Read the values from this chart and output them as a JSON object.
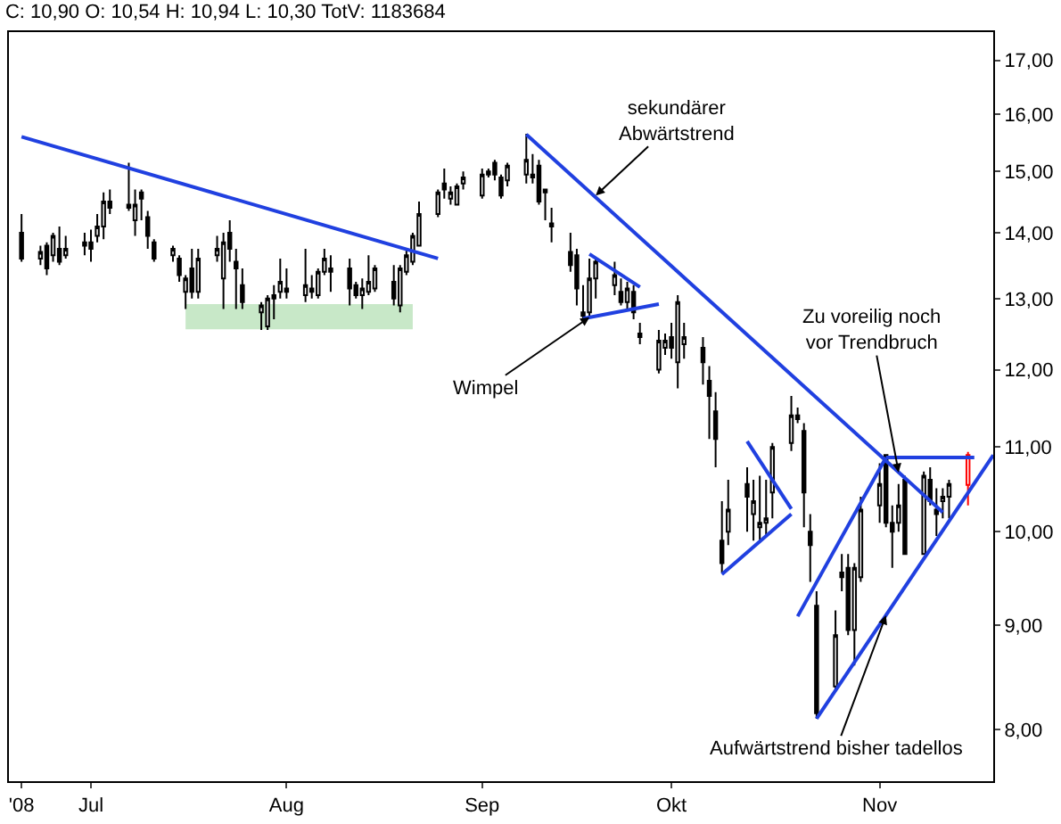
{
  "chart_data": {
    "type": "candlestick",
    "title": "C: 10,90 O: 10,54 H: 10,94 L: 10,30 TotV: 1183684",
    "log": "y",
    "legend": false,
    "xlim": [
      "2008-06-18",
      "2008-11-21"
    ],
    "xticks": [
      {
        "value": "2008-06-20",
        "label": "'08"
      },
      {
        "value": "2008-07-01",
        "label": "Jul"
      },
      {
        "value": "2008-08-01",
        "label": "Aug"
      },
      {
        "value": "2008-09-01",
        "label": "Sep"
      },
      {
        "value": "2008-10-01",
        "label": "Okt"
      },
      {
        "value": "2008-11-03",
        "label": "Nov"
      }
    ],
    "ylim": [
      7.55,
      17.55
    ],
    "yticks": [
      {
        "value": 8,
        "label": "8,00"
      },
      {
        "value": 9,
        "label": "9,00"
      },
      {
        "value": 10,
        "label": "10,00"
      },
      {
        "value": 11,
        "label": "11,00"
      },
      {
        "value": 12,
        "label": "12,00"
      },
      {
        "value": 13,
        "label": "13,00"
      },
      {
        "value": 14,
        "label": "14,00"
      },
      {
        "value": 15,
        "label": "15,00"
      },
      {
        "value": 16,
        "label": "16,00"
      },
      {
        "value": 17,
        "label": "17,00"
      }
    ],
    "annotations": [
      {
        "text": "sekundärer\nAbwärtstrend",
        "x": "2008-09-19",
        "y": 14.6
      },
      {
        "text": "Wimpel",
        "x": "2008-09-18",
        "y": 12.73
      },
      {
        "text": "Zu voreilig noch\nvor Trendbruch",
        "x": "2008-11-06",
        "y": 10.69
      },
      {
        "text": "Aufwärtstrend bisher tadellos",
        "x": "2008-11-04",
        "y": 9.1
      }
    ],
    "series": [
      {
        "type": "bar",
        "color": "#c8e8c8",
        "x": [
          "2008-08-03"
        ],
        "base": [
          12.56
        ],
        "values": [
          0.36
        ]
      },
      {
        "color": "#000000",
        "x": [
          "2008-06-20",
          "2008-06-23",
          "2008-06-24",
          "2008-06-25",
          "2008-06-26",
          "2008-06-27",
          "2008-06-30",
          "2008-07-01",
          "2008-07-02",
          "2008-07-03",
          "2008-07-04",
          "2008-07-07",
          "2008-07-08",
          "2008-07-09",
          "2008-07-10",
          "2008-07-11",
          "2008-07-14",
          "2008-07-15",
          "2008-07-16",
          "2008-07-17",
          "2008-07-18",
          "2008-07-21",
          "2008-07-22",
          "2008-07-23",
          "2008-07-24",
          "2008-07-25",
          "2008-07-28",
          "2008-07-29",
          "2008-07-30",
          "2008-07-31",
          "2008-08-01",
          "2008-08-04",
          "2008-08-05",
          "2008-08-06",
          "2008-08-07",
          "2008-08-08",
          "2008-08-11",
          "2008-08-12",
          "2008-08-13",
          "2008-08-14",
          "2008-08-15",
          "2008-08-18",
          "2008-08-19",
          "2008-08-20",
          "2008-08-21",
          "2008-08-22",
          "2008-08-25",
          "2008-08-26",
          "2008-08-27",
          "2008-08-28",
          "2008-08-29",
          "2008-09-01",
          "2008-09-02",
          "2008-09-03",
          "2008-09-04",
          "2008-09-05",
          "2008-09-08",
          "2008-09-09",
          "2008-09-10",
          "2008-09-11",
          "2008-09-12",
          "2008-09-15",
          "2008-09-16",
          "2008-09-17",
          "2008-09-18",
          "2008-09-19",
          "2008-09-22",
          "2008-09-23",
          "2008-09-24",
          "2008-09-25",
          "2008-09-26",
          "2008-09-29",
          "2008-09-30",
          "2008-10-01",
          "2008-10-02",
          "2008-10-03",
          "2008-10-06",
          "2008-10-07",
          "2008-10-08",
          "2008-10-09",
          "2008-10-10",
          "2008-10-13",
          "2008-10-14",
          "2008-10-15",
          "2008-10-16",
          "2008-10-17",
          "2008-10-20",
          "2008-10-21",
          "2008-10-22",
          "2008-10-23",
          "2008-10-24",
          "2008-10-27",
          "2008-10-28",
          "2008-10-29",
          "2008-10-30",
          "2008-10-31",
          "2008-11-03",
          "2008-11-04",
          "2008-11-05",
          "2008-11-06",
          "2008-11-07",
          "2008-11-10",
          "2008-11-11",
          "2008-11-12",
          "2008-11-13",
          "2008-11-14"
        ],
        "ohlc": [
          [
            14.0,
            14.3,
            13.55,
            13.6
          ],
          [
            13.6,
            13.8,
            13.5,
            13.7
          ],
          [
            13.8,
            13.85,
            13.35,
            13.45
          ],
          [
            13.65,
            14.0,
            13.55,
            13.95
          ],
          [
            13.75,
            14.1,
            13.5,
            13.55
          ],
          [
            13.65,
            13.95,
            13.6,
            13.75
          ],
          [
            13.8,
            14.0,
            13.65,
            13.85
          ],
          [
            13.85,
            14.05,
            13.55,
            13.75
          ],
          [
            13.95,
            14.3,
            13.85,
            14.1
          ],
          [
            14.1,
            14.65,
            13.9,
            14.5
          ],
          [
            14.5,
            14.7,
            14.3,
            14.4
          ],
          [
            14.45,
            15.15,
            14.35,
            14.4
          ],
          [
            14.2,
            14.7,
            13.95,
            14.45
          ],
          [
            14.65,
            14.7,
            14.2,
            14.55
          ],
          [
            14.25,
            14.35,
            13.75,
            13.95
          ],
          [
            13.85,
            13.9,
            13.55,
            13.6
          ],
          [
            13.65,
            13.8,
            13.55,
            13.75
          ],
          [
            13.6,
            13.65,
            13.25,
            13.35
          ],
          [
            13.1,
            13.35,
            12.85,
            13.3
          ],
          [
            13.45,
            13.75,
            13.0,
            13.1
          ],
          [
            13.1,
            13.75,
            13.0,
            13.6
          ],
          [
            13.65,
            13.95,
            13.55,
            13.75
          ],
          [
            13.3,
            14.0,
            12.85,
            13.85
          ],
          [
            14.0,
            14.2,
            13.55,
            13.75
          ],
          [
            13.55,
            13.75,
            12.85,
            13.45
          ],
          [
            13.2,
            13.45,
            12.85,
            12.95
          ],
          [
            12.8,
            12.95,
            12.55,
            12.9
          ],
          [
            12.6,
            13.05,
            12.55,
            13.0
          ],
          [
            13.0,
            13.2,
            12.7,
            13.05
          ],
          [
            13.1,
            13.6,
            13.0,
            13.25
          ],
          [
            13.1,
            13.45,
            13.0,
            13.15
          ],
          [
            13.05,
            13.75,
            12.95,
            13.2
          ],
          [
            13.1,
            13.35,
            13.0,
            13.15
          ],
          [
            13.05,
            13.45,
            13.0,
            13.4
          ],
          [
            13.4,
            13.75,
            13.35,
            13.6
          ],
          [
            13.4,
            13.65,
            13.1,
            13.45
          ],
          [
            13.45,
            13.6,
            12.9,
            13.15
          ],
          [
            13.2,
            13.25,
            13.0,
            13.05
          ],
          [
            13.05,
            13.3,
            12.85,
            13.15
          ],
          [
            13.1,
            13.65,
            13.05,
            13.25
          ],
          [
            13.15,
            13.5,
            13.1,
            13.45
          ],
          [
            13.25,
            13.5,
            12.9,
            13.0
          ],
          [
            12.9,
            13.5,
            12.8,
            13.45
          ],
          [
            13.4,
            13.75,
            13.35,
            13.65
          ],
          [
            13.55,
            14.0,
            13.5,
            13.95
          ],
          [
            13.8,
            14.5,
            13.8,
            14.3
          ],
          [
            14.3,
            14.7,
            14.25,
            14.65
          ],
          [
            14.8,
            15.05,
            14.55,
            14.7
          ],
          [
            14.55,
            14.75,
            14.45,
            14.65
          ],
          [
            14.45,
            14.8,
            14.45,
            14.75
          ],
          [
            14.8,
            15.0,
            14.7,
            14.9
          ],
          [
            14.6,
            15.05,
            14.55,
            14.95
          ],
          [
            14.95,
            15.05,
            14.9,
            15.0
          ],
          [
            15.15,
            15.2,
            14.85,
            14.95
          ],
          [
            14.9,
            14.95,
            14.55,
            14.6
          ],
          [
            14.85,
            15.15,
            14.75,
            15.1
          ],
          [
            14.95,
            15.65,
            14.8,
            15.2
          ],
          [
            14.95,
            15.3,
            14.8,
            14.9
          ],
          [
            15.1,
            15.2,
            14.45,
            14.5
          ],
          [
            14.7,
            14.7,
            14.2,
            14.65
          ],
          [
            14.15,
            14.4,
            13.85,
            14.1
          ],
          [
            13.7,
            14.0,
            13.4,
            13.5
          ],
          [
            13.65,
            13.75,
            12.9,
            13.15
          ],
          [
            12.8,
            13.2,
            12.7,
            12.75
          ],
          [
            12.8,
            13.6,
            12.75,
            13.3
          ],
          [
            13.3,
            13.6,
            13.0,
            13.55
          ],
          [
            13.2,
            13.55,
            13.05,
            13.35
          ],
          [
            13.1,
            13.3,
            12.9,
            12.95
          ],
          [
            12.95,
            13.25,
            12.85,
            13.15
          ],
          [
            13.1,
            13.2,
            12.7,
            12.8
          ],
          [
            12.5,
            12.65,
            12.35,
            12.45
          ],
          [
            12.0,
            12.55,
            11.95,
            12.4
          ],
          [
            12.3,
            12.5,
            12.2,
            12.4
          ],
          [
            12.45,
            12.65,
            12.15,
            12.3
          ],
          [
            12.1,
            13.05,
            11.75,
            12.95
          ],
          [
            12.35,
            12.65,
            12.15,
            12.45
          ],
          [
            12.3,
            12.45,
            11.8,
            12.1
          ],
          [
            11.85,
            12.05,
            11.1,
            11.65
          ],
          [
            11.45,
            11.7,
            10.75,
            11.1
          ],
          [
            9.9,
            10.35,
            9.55,
            9.65
          ],
          [
            10.0,
            10.6,
            9.85,
            10.25
          ],
          [
            10.55,
            10.75,
            10.0,
            10.4
          ],
          [
            10.2,
            10.6,
            9.9,
            10.35
          ],
          [
            10.05,
            10.65,
            9.9,
            10.1
          ],
          [
            10.1,
            10.6,
            9.95,
            10.15
          ],
          [
            10.45,
            11.05,
            10.15,
            11.0
          ],
          [
            11.05,
            11.65,
            10.95,
            11.4
          ],
          [
            11.4,
            11.5,
            11.3,
            11.35
          ],
          [
            11.2,
            11.3,
            10.05,
            10.45
          ],
          [
            10.0,
            10.2,
            9.45,
            9.85
          ],
          [
            9.2,
            9.35,
            8.1,
            8.15
          ],
          [
            8.4,
            9.15,
            8.35,
            8.9
          ],
          [
            9.55,
            9.75,
            9.35,
            9.5
          ],
          [
            9.6,
            9.75,
            8.9,
            8.95
          ],
          [
            8.95,
            9.65,
            8.6,
            9.6
          ],
          [
            9.5,
            10.4,
            9.45,
            10.25
          ],
          [
            10.3,
            10.8,
            10.1,
            10.55
          ],
          [
            10.9,
            10.9,
            10.05,
            10.1
          ],
          [
            10.1,
            10.3,
            9.6,
            10.0
          ],
          [
            10.1,
            10.55,
            10.0,
            10.3
          ],
          [
            10.6,
            10.65,
            9.75,
            9.75
          ],
          [
            9.75,
            10.7,
            9.75,
            10.65
          ],
          [
            10.6,
            10.75,
            10.3,
            10.35
          ],
          [
            10.25,
            10.5,
            9.95,
            10.2
          ],
          [
            10.35,
            10.5,
            10.15,
            10.4
          ],
          [
            10.4,
            10.6,
            10.15,
            10.55
          ]
        ]
      },
      {
        "color": "#ff0000",
        "x": [
          "2008-11-17"
        ],
        "ohlc": [
          [
            10.54,
            10.94,
            10.3,
            10.9
          ]
        ]
      },
      {
        "type": "line",
        "color": "#2040e0",
        "x": [
          "2008-06-20",
          "2008-08-25"
        ],
        "values": [
          15.6,
          13.6
        ]
      },
      {
        "type": "line",
        "color": "#2040e0",
        "x": [
          "2008-09-08",
          "2008-11-13"
        ],
        "values": [
          15.64,
          10.22
        ]
      },
      {
        "type": "line",
        "color": "#2040e0",
        "x": [
          "2008-09-18",
          "2008-09-26"
        ],
        "values": [
          13.67,
          13.17
        ]
      },
      {
        "type": "line",
        "color": "#2040e0",
        "x": [
          "2008-09-17",
          "2008-09-29"
        ],
        "values": [
          12.71,
          12.92
        ]
      },
      {
        "type": "line",
        "color": "#2040e0",
        "x": [
          "2008-10-13",
          "2008-10-20"
        ],
        "values": [
          11.07,
          10.26
        ]
      },
      {
        "type": "line",
        "color": "#2040e0",
        "x": [
          "2008-10-09",
          "2008-10-20"
        ],
        "values": [
          9.53,
          10.2
        ]
      },
      {
        "type": "line",
        "color": "#2040e0",
        "x": [
          "2008-10-21",
          "2008-11-04"
        ],
        "values": [
          9.09,
          10.87
        ]
      },
      {
        "type": "line",
        "color": "#2040e0",
        "x": [
          "2008-11-04",
          "2008-11-18"
        ],
        "values": [
          10.87,
          10.87
        ]
      },
      {
        "type": "line",
        "color": "#2040e0",
        "x": [
          "2008-10-24",
          "2008-11-21"
        ],
        "values": [
          8.1,
          10.9
        ]
      }
    ]
  }
}
